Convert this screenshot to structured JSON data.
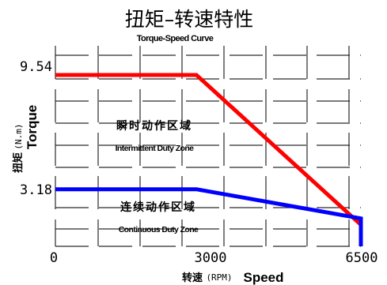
{
  "chart_data": {
    "type": "line",
    "title": "扭矩–转速特性",
    "subtitle": "Torque-Speed Curve",
    "x_label_cn": "转速",
    "x_unit": "(RPM)",
    "x_label_en": "Speed",
    "y_label_cn": "扭矩",
    "y_unit": "(N.m)",
    "y_label_en": "Torque",
    "x_ticks": [
      "0",
      "3000",
      "6500"
    ],
    "y_ticks": [
      "9.54",
      "3.18"
    ],
    "xlim": [
      0,
      6500
    ],
    "ylim": [
      0,
      11.3
    ],
    "grid": true,
    "series": [
      {
        "key": "intermittent",
        "color": "#ff0000",
        "x": [
          0,
          3000,
          6500,
          6500
        ],
        "y": [
          9.54,
          9.54,
          1.2,
          0
        ]
      },
      {
        "key": "continuous",
        "color": "#0000ff",
        "x": [
          0,
          3000,
          6500,
          6500
        ],
        "y": [
          3.18,
          3.18,
          1.55,
          0
        ]
      }
    ],
    "annotations": [
      {
        "key": "intermittent",
        "label_cn": "瞬时动作区域",
        "label_en": "Intermittent Duty Zone"
      },
      {
        "key": "continuous",
        "label_cn": "连续动作区域",
        "label_en": "Continuous Duty Zone"
      }
    ]
  }
}
